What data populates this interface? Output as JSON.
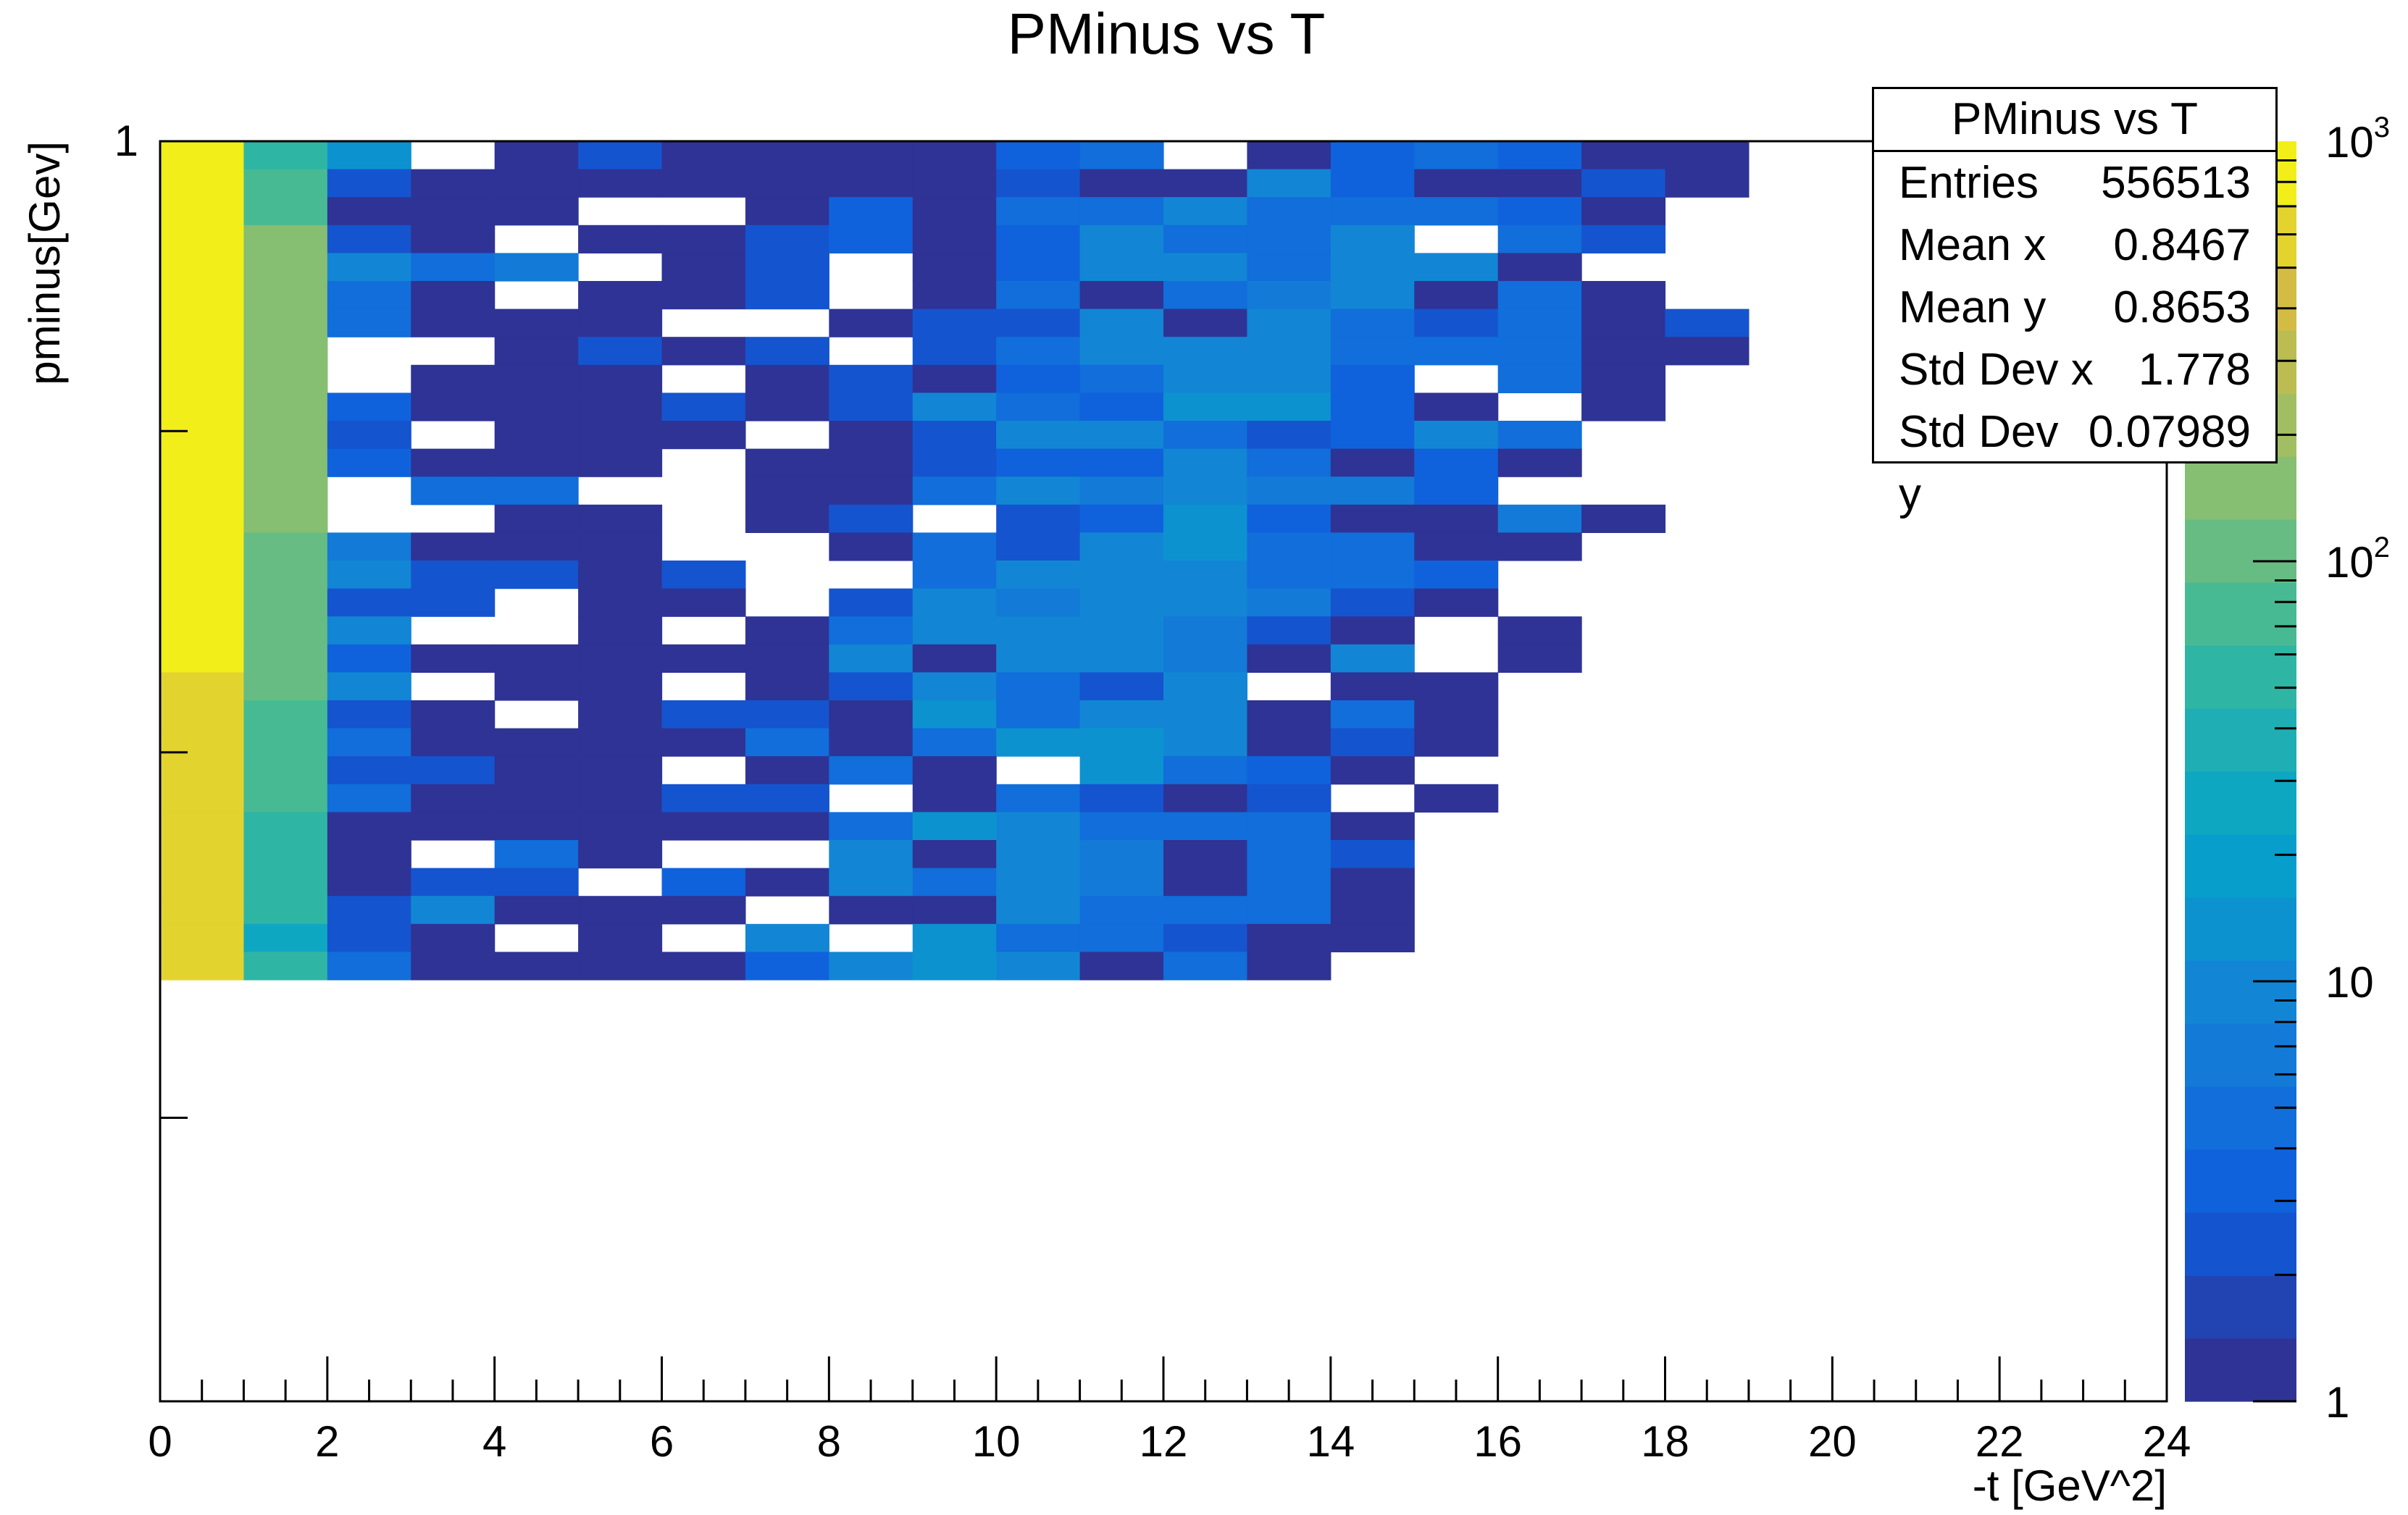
{
  "chart_data": {
    "type": "heatmap",
    "title": "PMinus vs T",
    "xlabel": "-t [GeV^2]",
    "ylabel": "pminus[Gev]",
    "xlim": [
      0,
      24
    ],
    "ylim": [
      0.4,
      1.0
    ],
    "x_ticks": [
      "0",
      "2",
      "4",
      "6",
      "8",
      "10",
      "12",
      "14",
      "16",
      "18",
      "20",
      "22",
      "24"
    ],
    "y_ticks": [
      "1"
    ],
    "z_scale": "log",
    "z_range": [
      1,
      1000
    ],
    "colorbar_ticks": [
      {
        "value": 1,
        "label": "1"
      },
      {
        "value": 10,
        "label": "10"
      },
      {
        "value": 100,
        "label": "10",
        "exponent": "2"
      },
      {
        "value": 1000,
        "label": "10",
        "exponent": "3"
      }
    ],
    "x_bin_width": 1,
    "y_bins_top_to_bottom": 35,
    "grid_z_rows_top_to_bottom": [
      [
        800,
        60,
        12,
        0,
        1,
        2,
        1,
        1,
        1,
        1,
        3,
        4,
        0,
        1,
        3,
        4,
        3,
        1,
        1
      ],
      [
        1000,
        80,
        2,
        1,
        1,
        1,
        1,
        1,
        1,
        1,
        2,
        1,
        1,
        10,
        3,
        1,
        1,
        2,
        1
      ],
      [
        1000,
        80,
        1,
        1,
        1,
        0,
        0,
        1,
        3,
        1,
        5,
        4,
        8,
        5,
        5,
        4,
        3,
        1
      ],
      [
        1000,
        160,
        2,
        1,
        0,
        1,
        1,
        2,
        3,
        1,
        3,
        8,
        4,
        4,
        8,
        0,
        4,
        2
      ],
      [
        1000,
        160,
        8,
        4,
        6,
        0,
        1,
        2,
        0,
        1,
        3,
        8,
        8,
        5,
        8,
        10,
        1
      ],
      [
        1000,
        160,
        5,
        1,
        0,
        1,
        1,
        2,
        0,
        1,
        4,
        1,
        4,
        7,
        10,
        1,
        4,
        1
      ],
      [
        1000,
        160,
        5,
        1,
        1,
        1,
        0,
        0,
        1,
        2,
        2,
        10,
        1,
        10,
        5,
        2,
        4,
        1,
        2
      ],
      [
        1000,
        160,
        0,
        0,
        1,
        2,
        1,
        2,
        0,
        2,
        4,
        8,
        10,
        10,
        4,
        5,
        4,
        1,
        1
      ],
      [
        1000,
        160,
        0,
        1,
        1,
        1,
        0,
        1,
        2,
        1,
        3,
        4,
        8,
        8,
        3,
        0,
        4,
        1
      ],
      [
        1000,
        160,
        3,
        1,
        1,
        1,
        2,
        1,
        2,
        8,
        5,
        3,
        14,
        14,
        3,
        1,
        0,
        1
      ],
      [
        1000,
        160,
        2,
        0,
        1,
        1,
        1,
        0,
        1,
        2,
        10,
        8,
        5,
        2,
        3,
        10,
        4
      ],
      [
        1000,
        160,
        3,
        1,
        1,
        1,
        0,
        1,
        1,
        2,
        3,
        3,
        10,
        5,
        1,
        3,
        1
      ],
      [
        1000,
        160,
        0,
        4,
        4,
        0,
        0,
        1,
        1,
        4,
        10,
        6,
        10,
        7,
        7,
        3
      ],
      [
        1000,
        160,
        0,
        0,
        1,
        1,
        0,
        1,
        2,
        0,
        2,
        3,
        12,
        3,
        1,
        1,
        7,
        1
      ],
      [
        1000,
        100,
        6,
        1,
        1,
        1,
        0,
        0,
        1,
        5,
        2,
        10,
        12,
        5,
        5,
        1,
        1
      ],
      [
        1000,
        100,
        10,
        2,
        2,
        1,
        2,
        0,
        0,
        5,
        10,
        10,
        10,
        4,
        4,
        3
      ],
      [
        1000,
        120,
        2,
        2,
        0,
        1,
        1,
        0,
        2,
        8,
        6,
        8,
        8,
        6,
        2,
        1
      ],
      [
        1000,
        100,
        10,
        0,
        0,
        1,
        0,
        1,
        4,
        8,
        10,
        8,
        6,
        2,
        1,
        0,
        1
      ],
      [
        1000,
        100,
        3,
        1,
        1,
        1,
        1,
        1,
        10,
        1,
        10,
        8,
        6,
        1,
        8,
        0,
        1
      ],
      [
        700,
        100,
        8,
        0,
        1,
        1,
        0,
        1,
        2,
        8,
        4,
        2,
        8,
        0,
        1,
        1
      ],
      [
        700,
        80,
        2,
        1,
        0,
        1,
        2,
        2,
        1,
        14,
        5,
        8,
        8,
        1,
        4,
        1
      ],
      [
        700,
        80,
        5,
        1,
        1,
        1,
        1,
        4,
        1,
        5,
        12,
        12,
        8,
        1,
        2,
        1
      ],
      [
        700,
        80,
        2,
        2,
        1,
        1,
        0,
        1,
        5,
        1,
        0,
        12,
        4,
        3,
        1
      ],
      [
        700,
        80,
        4,
        1,
        1,
        1,
        2,
        2,
        0,
        1,
        5,
        2,
        1,
        2,
        0,
        1
      ],
      [
        700,
        50,
        1,
        1,
        1,
        1,
        1,
        1,
        5,
        14,
        8,
        4,
        5,
        4,
        1
      ],
      [
        700,
        60,
        1,
        0,
        4,
        1,
        0,
        0,
        8,
        1,
        8,
        6,
        1,
        4,
        2
      ],
      [
        600,
        50,
        1,
        2,
        2,
        0,
        3,
        1,
        8,
        5,
        8,
        6,
        1,
        4,
        1
      ],
      [
        700,
        50,
        2,
        8,
        1,
        1,
        1,
        0,
        1,
        1,
        10,
        4,
        4,
        4,
        1
      ],
      [
        700,
        30,
        2,
        1,
        0,
        1,
        0,
        8,
        0,
        12,
        5,
        5,
        2,
        1,
        1
      ],
      [
        700,
        50,
        5,
        1,
        1,
        1,
        1,
        3,
        8,
        12,
        8,
        1,
        4,
        1
      ]
    ]
  },
  "stats_box": {
    "title": "PMinus vs T",
    "rows": [
      {
        "label": "Entries",
        "value": "556513"
      },
      {
        "label": "Mean x",
        "value": "0.8467"
      },
      {
        "label": "Mean y",
        "value": "0.8653"
      },
      {
        "label": "Std Dev x",
        "value": "1.778"
      },
      {
        "label": "Std Dev y",
        "value": "0.07989"
      }
    ]
  }
}
